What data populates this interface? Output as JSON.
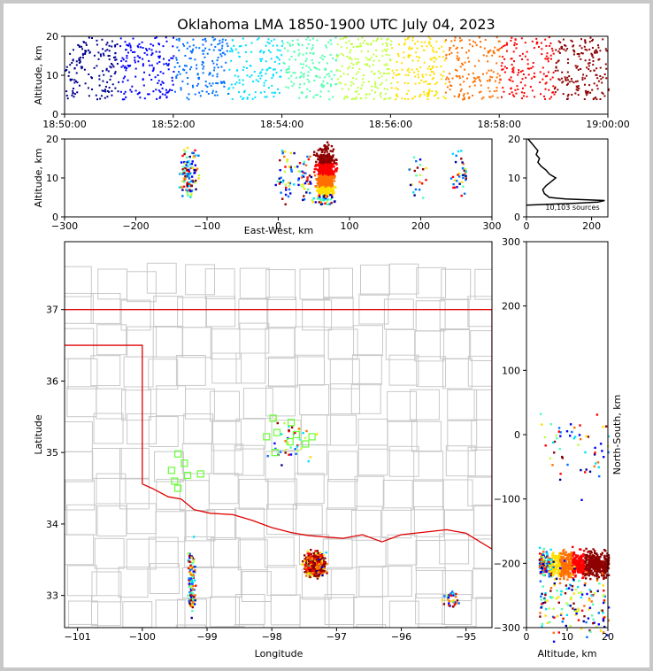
{
  "title": "Oklahoma LMA 1850-1900 UTC July 04, 2023",
  "colors": {
    "jet": [
      "#00008f",
      "#0000ff",
      "#0070ff",
      "#00dfff",
      "#50ffaf",
      "#bfff40",
      "#ffdf00",
      "#ff7000",
      "#ff0000",
      "#8f0000"
    ],
    "state_border": "#e00000",
    "county_lines": "#c8c8c8",
    "source_square": "#66ff33",
    "histogram": "#000000"
  },
  "chart_data": [
    {
      "id": "altitude_time",
      "type": "scatter",
      "ylabel": "Altitude, km",
      "ylim": [
        0,
        20
      ],
      "yticks": [
        "0",
        "10",
        "20"
      ],
      "xlim": [
        "18:50:00",
        "19:00:00"
      ],
      "xticks": [
        "18:50:00",
        "18:52:00",
        "18:54:00",
        "18:56:00",
        "18:58:00",
        "19:00:00"
      ],
      "altitude_band_km": [
        4,
        20
      ],
      "color_by": "time"
    },
    {
      "id": "east_west_altitude",
      "type": "scatter",
      "xlabel": "East-West, km",
      "ylabel": "Altitude, km",
      "xlim": [
        -300,
        300
      ],
      "ylim": [
        0,
        20
      ],
      "xticks": [
        "−300",
        "−200",
        "−100",
        "0",
        "100",
        "200",
        "300"
      ],
      "yticks": [
        "0",
        "10",
        "20"
      ],
      "clusters": [
        {
          "x": -127,
          "alt": 11,
          "spread_x": 10,
          "weight": 110
        },
        {
          "x": 10,
          "alt": 11,
          "spread_x": 10,
          "weight": 45
        },
        {
          "x": 38,
          "alt": 10,
          "spread_x": 8,
          "weight": 40
        },
        {
          "x": 65,
          "alt": 11,
          "spread_x": 9,
          "weight": 900
        },
        {
          "x": 195,
          "alt": 11,
          "spread_x": 10,
          "weight": 22
        },
        {
          "x": 255,
          "alt": 12,
          "spread_x": 8,
          "weight": 40
        }
      ]
    },
    {
      "id": "altitude_histogram",
      "type": "line",
      "xlim": [
        0,
        250
      ],
      "ylim": [
        0,
        20
      ],
      "xticks": [
        "0",
        "200"
      ],
      "yticks": [
        "0",
        "10",
        "20"
      ],
      "annotation": "10,103 sources",
      "profile": [
        [
          0,
          3
        ],
        [
          150,
          3.5
        ],
        [
          220,
          3.8
        ],
        [
          240,
          4.2
        ],
        [
          120,
          4.6
        ],
        [
          70,
          5
        ],
        [
          55,
          6
        ],
        [
          50,
          7
        ],
        [
          60,
          8
        ],
        [
          75,
          9
        ],
        [
          90,
          10
        ],
        [
          70,
          11
        ],
        [
          60,
          12
        ],
        [
          45,
          13
        ],
        [
          35,
          14
        ],
        [
          40,
          15
        ],
        [
          30,
          16
        ],
        [
          35,
          17
        ],
        [
          25,
          18
        ],
        [
          15,
          19
        ],
        [
          5,
          20
        ]
      ]
    },
    {
      "id": "plan_view",
      "type": "scatter",
      "xlabel": "Longitude",
      "ylabel": "Latitude",
      "xlim": [
        -101.2,
        -94.6
      ],
      "ylim": [
        32.55,
        37.95
      ],
      "xticks": [
        "−101",
        "−100",
        "−99",
        "−98",
        "−97",
        "−96",
        "−95"
      ],
      "yticks": [
        "33",
        "34",
        "35",
        "36",
        "37"
      ],
      "clusters": [
        {
          "lon": -97.35,
          "lat": 33.45,
          "spread": 0.1,
          "weight": 900
        },
        {
          "lon": -99.25,
          "lat": 33.2,
          "spread": 0.04,
          "weight": 120
        },
        {
          "lon": -95.25,
          "lat": 32.95,
          "spread": 0.08,
          "weight": 35
        },
        {
          "lon": -97.75,
          "lat": 35.2,
          "spread": 0.25,
          "weight": 40
        }
      ],
      "stations": [
        {
          "lon": -99.45,
          "lat": 34.98
        },
        {
          "lon": -99.35,
          "lat": 34.85
        },
        {
          "lon": -99.55,
          "lat": 34.75
        },
        {
          "lon": -99.3,
          "lat": 34.68
        },
        {
          "lon": -99.1,
          "lat": 34.7
        },
        {
          "lon": -99.5,
          "lat": 34.6
        },
        {
          "lon": -99.45,
          "lat": 34.5
        },
        {
          "lon": -97.98,
          "lat": 35.48
        },
        {
          "lon": -97.7,
          "lat": 35.42
        },
        {
          "lon": -98.08,
          "lat": 35.22
        },
        {
          "lon": -97.92,
          "lat": 35.28
        },
        {
          "lon": -97.62,
          "lat": 35.25
        },
        {
          "lon": -97.38,
          "lat": 35.22
        },
        {
          "lon": -97.72,
          "lat": 35.15
        },
        {
          "lon": -97.48,
          "lat": 35.12
        },
        {
          "lon": -97.95,
          "lat": 35.0
        }
      ]
    },
    {
      "id": "altitude_north_south",
      "type": "scatter",
      "xlabel": "Altitude, km",
      "ylabel": "North-South, km",
      "xlim": [
        0,
        20
      ],
      "ylim": [
        -300,
        300
      ],
      "xticks": [
        "0",
        "10",
        "20"
      ],
      "yticks": [
        "−300",
        "−200",
        "−100",
        "0",
        "100",
        "200",
        "300"
      ],
      "clusters": [
        {
          "ns": -200,
          "spread": 14,
          "weight": 900
        },
        {
          "ns": -260,
          "spread": 35,
          "weight": 160
        },
        {
          "ns": -20,
          "spread": 40,
          "weight": 60
        }
      ]
    }
  ]
}
